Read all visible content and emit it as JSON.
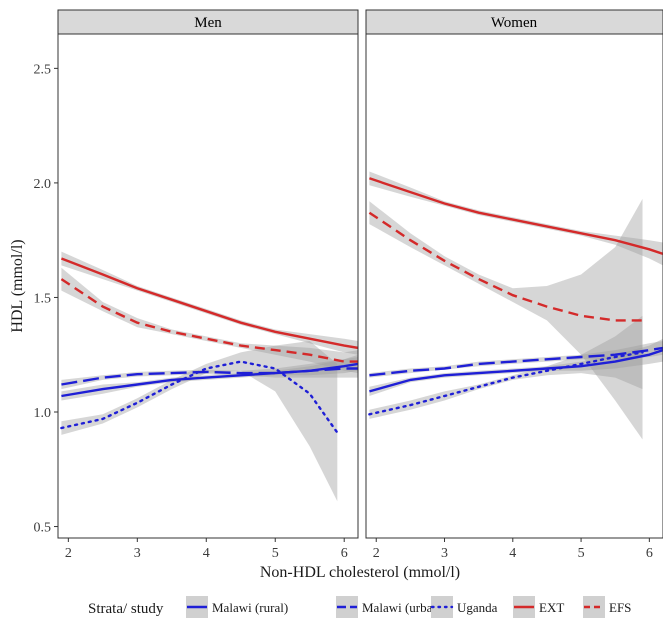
{
  "chart_data": {
    "type": "line",
    "xlabel": "Non-HDL cholesterol (mmol/l)",
    "ylabel": "HDL (mmol/l)",
    "xlim": [
      1.85,
      6.2
    ],
    "ylim": [
      0.45,
      2.65
    ],
    "xticks": [
      2,
      3,
      4,
      5,
      6
    ],
    "yticks": [
      0.5,
      1.0,
      1.5,
      2.0,
      2.5
    ],
    "ytick_labels": [
      "0.5",
      "1.0",
      "1.5",
      "2.0",
      "2.5"
    ],
    "grid": false,
    "legend_position": "bottom",
    "legend_title": "Strata/ study",
    "panels": [
      {
        "name": "Men",
        "series": [
          {
            "name": "Malawi (rural)",
            "color": "#1f1fd6",
            "dash": "solid",
            "x": [
              1.9,
              2.5,
              3,
              3.5,
              4,
              4.5,
              5,
              5.5,
              6,
              6.2
            ],
            "y": [
              1.07,
              1.1,
              1.12,
              1.14,
              1.15,
              1.16,
              1.17,
              1.18,
              1.2,
              1.21
            ],
            "lower": [
              1.05,
              1.08,
              1.11,
              1.13,
              1.14,
              1.15,
              1.16,
              1.16,
              1.17,
              1.18
            ],
            "upper": [
              1.09,
              1.12,
              1.13,
              1.15,
              1.16,
              1.17,
              1.18,
              1.2,
              1.23,
              1.25
            ]
          },
          {
            "name": "Malawi (urban)",
            "color": "#1f1fd6",
            "dash": "longdash",
            "x": [
              1.9,
              2.5,
              3,
              3.5,
              4,
              4.5,
              5,
              5.5,
              6,
              6.2
            ],
            "y": [
              1.12,
              1.15,
              1.165,
              1.17,
              1.175,
              1.17,
              1.17,
              1.18,
              1.19,
              1.19
            ],
            "lower": [
              1.1,
              1.14,
              1.155,
              1.16,
              1.165,
              1.16,
              1.15,
              1.15,
              1.15,
              1.15
            ],
            "upper": [
              1.14,
              1.16,
              1.175,
              1.18,
              1.185,
              1.18,
              1.19,
              1.21,
              1.23,
              1.24
            ]
          },
          {
            "name": "Uganda",
            "color": "#1f1fd6",
            "dash": "dotted",
            "x": [
              1.9,
              2.5,
              3,
              3.5,
              4,
              4.5,
              5,
              5.5,
              5.9
            ],
            "y": [
              0.93,
              0.97,
              1.04,
              1.12,
              1.19,
              1.22,
              1.19,
              1.08,
              0.91
            ],
            "lower": [
              0.9,
              0.95,
              1.02,
              1.1,
              1.17,
              1.18,
              1.09,
              0.85,
              0.61
            ],
            "upper": [
              0.96,
              0.99,
              1.06,
              1.14,
              1.21,
              1.26,
              1.29,
              1.31,
              1.21
            ]
          },
          {
            "name": "EXT",
            "color": "#d42a2a",
            "dash": "solid",
            "x": [
              1.9,
              2.5,
              3,
              3.5,
              4,
              4.5,
              5,
              5.5,
              6,
              6.2
            ],
            "y": [
              1.67,
              1.6,
              1.54,
              1.49,
              1.44,
              1.39,
              1.35,
              1.32,
              1.29,
              1.28
            ],
            "lower": [
              1.64,
              1.58,
              1.53,
              1.48,
              1.43,
              1.38,
              1.34,
              1.3,
              1.26,
              1.25
            ],
            "upper": [
              1.7,
              1.62,
              1.55,
              1.5,
              1.45,
              1.4,
              1.36,
              1.34,
              1.32,
              1.31
            ]
          },
          {
            "name": "EFS",
            "color": "#d42a2a",
            "dash": "dashed",
            "x": [
              1.9,
              2.5,
              3,
              3.5,
              4,
              4.5,
              5,
              5.5,
              6,
              6.2
            ],
            "y": [
              1.58,
              1.46,
              1.39,
              1.35,
              1.32,
              1.29,
              1.27,
              1.25,
              1.22,
              1.22
            ],
            "lower": [
              1.53,
              1.44,
              1.37,
              1.34,
              1.31,
              1.28,
              1.25,
              1.22,
              1.18,
              1.17
            ],
            "upper": [
              1.63,
              1.48,
              1.41,
              1.36,
              1.33,
              1.3,
              1.29,
              1.28,
              1.26,
              1.27
            ]
          }
        ]
      },
      {
        "name": "Women",
        "series": [
          {
            "name": "Malawi (rural)",
            "color": "#1f1fd6",
            "dash": "solid",
            "x": [
              1.9,
              2.5,
              3,
              3.5,
              4,
              4.5,
              5,
              5.5,
              6,
              6.2
            ],
            "y": [
              1.09,
              1.14,
              1.16,
              1.17,
              1.18,
              1.19,
              1.2,
              1.22,
              1.25,
              1.27
            ],
            "lower": [
              1.07,
              1.13,
              1.15,
              1.16,
              1.17,
              1.18,
              1.18,
              1.19,
              1.21,
              1.22
            ],
            "upper": [
              1.11,
              1.15,
              1.17,
              1.18,
              1.19,
              1.2,
              1.22,
              1.25,
              1.29,
              1.32
            ]
          },
          {
            "name": "Malawi (urban)",
            "color": "#1f1fd6",
            "dash": "longdash",
            "x": [
              1.9,
              2.5,
              3,
              3.5,
              4,
              4.5,
              5,
              5.5,
              6,
              6.2
            ],
            "y": [
              1.16,
              1.18,
              1.19,
              1.21,
              1.22,
              1.23,
              1.24,
              1.25,
              1.27,
              1.28
            ],
            "lower": [
              1.15,
              1.17,
              1.185,
              1.2,
              1.21,
              1.22,
              1.23,
              1.23,
              1.24,
              1.25
            ],
            "upper": [
              1.17,
              1.19,
              1.2,
              1.22,
              1.23,
              1.24,
              1.25,
              1.27,
              1.3,
              1.31
            ]
          },
          {
            "name": "Uganda",
            "color": "#1f1fd6",
            "dash": "dotted",
            "x": [
              1.9,
              2.5,
              3,
              3.5,
              4,
              4.5,
              5,
              5.5,
              5.9
            ],
            "y": [
              0.99,
              1.03,
              1.07,
              1.11,
              1.15,
              1.18,
              1.21,
              1.24,
              1.26
            ],
            "lower": [
              0.97,
              1.01,
              1.05,
              1.1,
              1.14,
              1.16,
              1.17,
              1.15,
              1.1
            ],
            "upper": [
              1.01,
              1.05,
              1.09,
              1.12,
              1.16,
              1.2,
              1.25,
              1.33,
              1.42
            ]
          },
          {
            "name": "EXT",
            "color": "#d42a2a",
            "dash": "solid",
            "x": [
              1.9,
              2.5,
              3,
              3.5,
              4,
              4.5,
              5,
              5.5,
              6,
              6.2
            ],
            "y": [
              2.02,
              1.96,
              1.91,
              1.87,
              1.84,
              1.81,
              1.78,
              1.75,
              1.71,
              1.69
            ],
            "lower": [
              1.99,
              1.94,
              1.9,
              1.86,
              1.83,
              1.8,
              1.77,
              1.73,
              1.67,
              1.64
            ],
            "upper": [
              2.05,
              1.98,
              1.92,
              1.88,
              1.85,
              1.82,
              1.79,
              1.77,
              1.75,
              1.74
            ]
          },
          {
            "name": "EFS",
            "color": "#d42a2a",
            "dash": "dashed",
            "x": [
              1.9,
              2.5,
              3,
              3.5,
              4,
              4.5,
              5,
              5.5,
              5.9
            ],
            "y": [
              1.87,
              1.75,
              1.66,
              1.58,
              1.51,
              1.46,
              1.42,
              1.4,
              1.4
            ],
            "lower": [
              1.82,
              1.72,
              1.64,
              1.56,
              1.48,
              1.4,
              1.25,
              1.05,
              0.88
            ],
            "upper": [
              1.92,
              1.78,
              1.68,
              1.6,
              1.54,
              1.55,
              1.6,
              1.72,
              1.93
            ]
          }
        ]
      }
    ]
  }
}
